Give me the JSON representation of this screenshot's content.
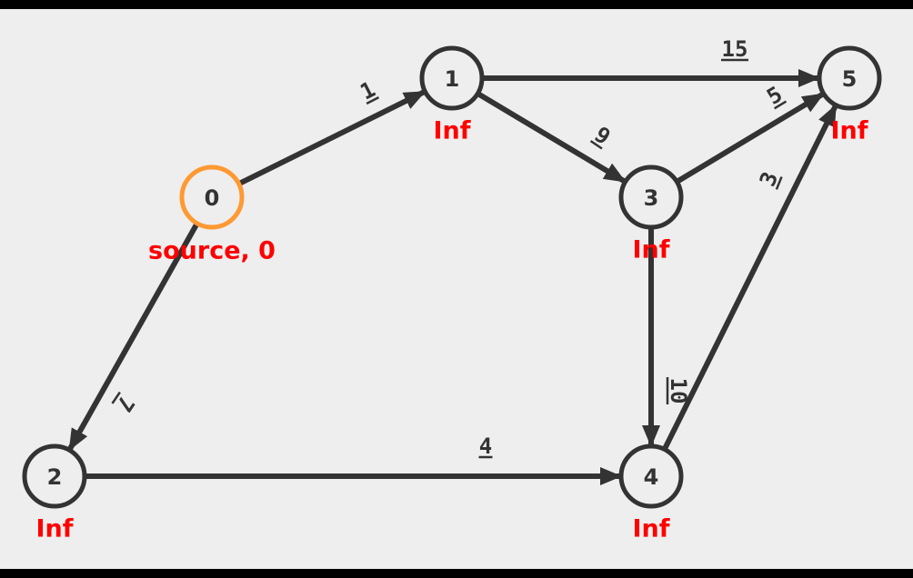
{
  "graph": {
    "colors": {
      "background": "#eeeeee",
      "frame": "#000000",
      "edge": "#333333",
      "node_fill": "#eeeeee",
      "node_stroke": "#333333",
      "source_stroke": "#ff9933",
      "source_text": "#ff9933",
      "distance_text": "#ff0000"
    },
    "nodes": [
      {
        "id": "0",
        "label": "0",
        "distance": "source, 0",
        "is_source": true
      },
      {
        "id": "1",
        "label": "1",
        "distance": "Inf",
        "is_source": false
      },
      {
        "id": "2",
        "label": "2",
        "distance": "Inf",
        "is_source": false
      },
      {
        "id": "3",
        "label": "3",
        "distance": "Inf",
        "is_source": false
      },
      {
        "id": "4",
        "label": "4",
        "distance": "Inf",
        "is_source": false
      },
      {
        "id": "5",
        "label": "5",
        "distance": "Inf",
        "is_source": false
      }
    ],
    "edges": [
      {
        "from": "0",
        "to": "1",
        "weight": "1"
      },
      {
        "from": "0",
        "to": "2",
        "weight": "7"
      },
      {
        "from": "1",
        "to": "3",
        "weight": "9"
      },
      {
        "from": "1",
        "to": "5",
        "weight": "15"
      },
      {
        "from": "3",
        "to": "5",
        "weight": "5"
      },
      {
        "from": "3",
        "to": "4",
        "weight": "10"
      },
      {
        "from": "2",
        "to": "4",
        "weight": "4"
      },
      {
        "from": "4",
        "to": "5",
        "weight": "3"
      }
    ]
  }
}
